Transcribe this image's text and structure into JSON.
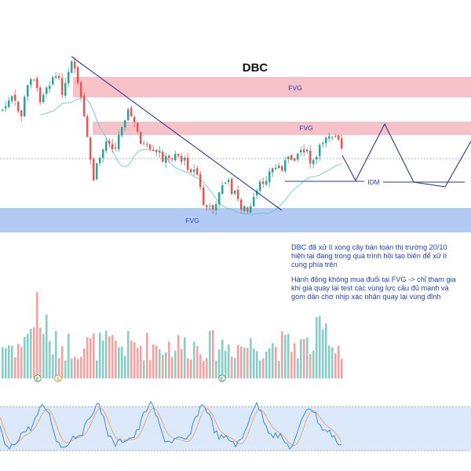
{
  "chart_data": {
    "type": "candlestick",
    "title": "DBC",
    "colors": {
      "up": "#26a69a",
      "down": "#ef5350",
      "fvg_zone": "#f4a6b0",
      "demand_zone": "#93b4f0",
      "trendline": "#2a3a9c",
      "projection": "#2a3a9c",
      "ma": "#5ec8c8",
      "stoch_k": "#2f7fd4",
      "stoch_d": "#f0a050",
      "stoch_band": "#dbe9fb"
    },
    "zone_labels": {
      "fvg_top": "FVG",
      "fvg_mid": "FVG",
      "fvg_low": "FVG",
      "idm": "IDM"
    },
    "annotation": {
      "line1": "DBC đã xử lí xong cây bán toàn thị trường 20/10",
      "line2": "hiện tại đang trong quá trình hồi tạo biên để xử lí",
      "line3": "cung phía trên",
      "line4": "Hành động không mua đuổi tại FVG -> chỉ tham gia",
      "line5": "khi giá quay lại test các vùng lực cầu đủ mạnh và",
      "line6": "gom dần chờ nhịp xác nhận quay lại vùng đỉnh"
    },
    "event_markers": [
      "E",
      "S",
      "E"
    ],
    "grid": false,
    "legend": "none"
  }
}
